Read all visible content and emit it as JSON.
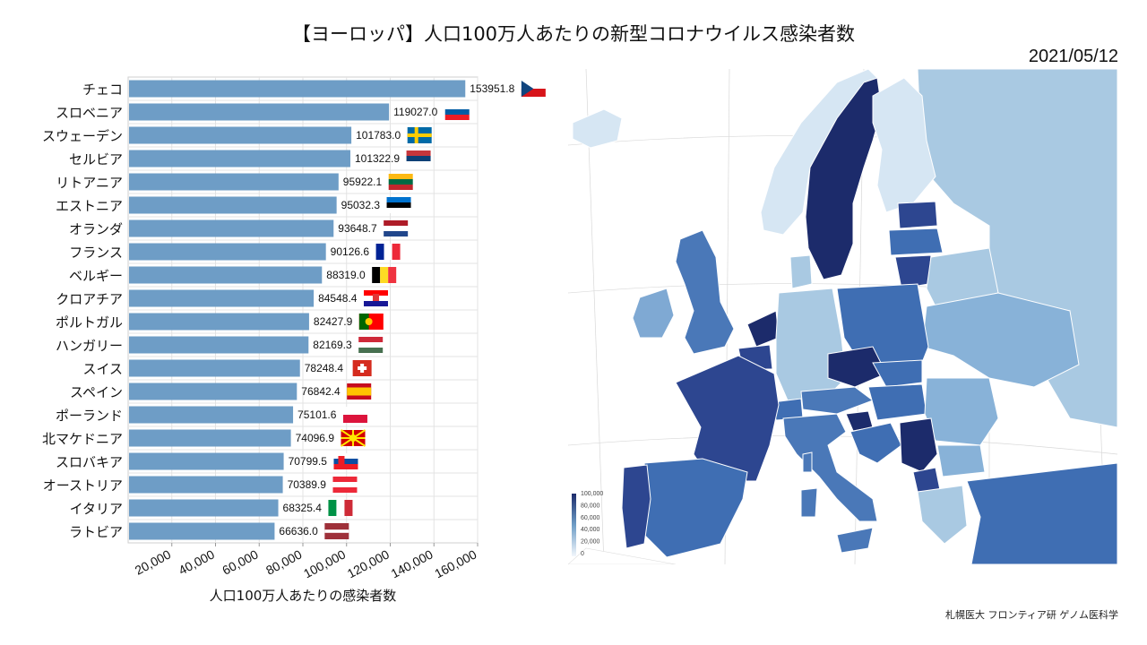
{
  "title": "【ヨーロッパ】人口100万人あたりの新型コロナウイルス感染者数",
  "date": "2021/05/12",
  "credit": "札幌医大 フロンティア研 ゲノム医科学",
  "map": {
    "legend_ticks": [
      "100,000",
      "80,000",
      "60,000",
      "40,000",
      "20,000",
      "0"
    ]
  },
  "colors": {
    "bar": "#6e9dc6",
    "grid": "#e3e3e3",
    "map_dark": "#1c2b6b",
    "map_mid": "#3f6eb3",
    "map_light": "#a9c9e2",
    "map_pale": "#d6e6f3",
    "land_none": "#ffffff",
    "sea": "#ffffff"
  },
  "chart_data": {
    "type": "bar",
    "orientation": "horizontal",
    "title": "【ヨーロッパ】人口100万人あたりの新型コロナウイルス感染者数",
    "xlabel": "人口100万人あたりの感染者数",
    "ylabel": "",
    "xlim": [
      0,
      160000
    ],
    "xticks": [
      20000,
      40000,
      60000,
      80000,
      100000,
      120000,
      140000,
      160000
    ],
    "xtick_labels": [
      "20,000",
      "40,000",
      "60,000",
      "80,000",
      "100,000",
      "120,000",
      "140,000",
      "160,000"
    ],
    "grid": true,
    "categories": [
      "チェコ",
      "スロベニア",
      "スウェーデン",
      "セルビア",
      "リトアニア",
      "エストニア",
      "オランダ",
      "フランス",
      "ベルギー",
      "クロアチア",
      "ポルトガル",
      "ハンガリー",
      "スイス",
      "スペイン",
      "ポーランド",
      "北マケドニア",
      "スロバキア",
      "オーストリア",
      "イタリア",
      "ラトビア"
    ],
    "values": [
      153951.8,
      119027.0,
      101783.0,
      101322.9,
      95922.1,
      95032.3,
      93648.7,
      90126.6,
      88319.0,
      84548.4,
      82427.9,
      82169.3,
      78248.4,
      76842.4,
      75101.6,
      74096.9,
      70799.5,
      70389.9,
      68325.4,
      66636.0
    ],
    "value_labels": [
      "153951.8",
      "119027.0",
      "101783.0",
      "101322.9",
      "95922.1",
      "95032.3",
      "93648.7",
      "90126.6",
      "88319.0",
      "84548.4",
      "82427.9",
      "82169.3",
      "78248.4",
      "76842.4",
      "75101.6",
      "74096.9",
      "70799.5",
      "70389.9",
      "68325.4",
      "66636.0"
    ],
    "flags": [
      "czech",
      "slovenia",
      "sweden",
      "serbia",
      "lithuania",
      "estonia",
      "netherlands",
      "france",
      "belgium",
      "croatia",
      "portugal",
      "hungary",
      "switzerland",
      "spain",
      "poland",
      "north-macedonia",
      "slovakia",
      "austria",
      "italy",
      "latvia"
    ]
  }
}
